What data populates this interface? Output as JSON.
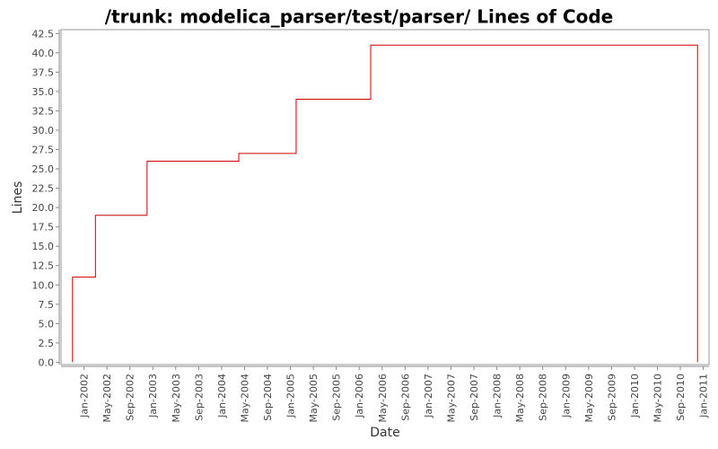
{
  "chart_data": {
    "type": "line",
    "title": "/trunk: modelica_parser/test/parser/ Lines of Code",
    "x_label": "Date",
    "y_label": "Lines",
    "color": "#cc0000",
    "x": [
      "2001-11",
      "2001-11",
      "2002-03",
      "2002-03",
      "2002-12",
      "2002-12",
      "2004-04",
      "2004-04",
      "2005-02",
      "2005-02",
      "2006-03",
      "2006-03",
      "2010-12",
      "2010-12"
    ],
    "values": [
      0,
      11,
      11,
      19,
      19,
      26,
      26,
      27,
      27,
      34,
      34,
      41,
      41,
      0
    ],
    "xlim": [
      "2001-09",
      "2011-02"
    ],
    "xticks": [
      {
        "value": "2002-01",
        "label": "Jan-2002"
      },
      {
        "value": "2002-05",
        "label": "May-2002"
      },
      {
        "value": "2002-09",
        "label": "Sep-2002"
      },
      {
        "value": "2003-01",
        "label": "Jan-2003"
      },
      {
        "value": "2003-05",
        "label": "May-2003"
      },
      {
        "value": "2003-09",
        "label": "Sep-2003"
      },
      {
        "value": "2004-01",
        "label": "Jan-2004"
      },
      {
        "value": "2004-05",
        "label": "May-2004"
      },
      {
        "value": "2004-09",
        "label": "Sep-2004"
      },
      {
        "value": "2005-01",
        "label": "Jan-2005"
      },
      {
        "value": "2005-05",
        "label": "May-2005"
      },
      {
        "value": "2005-09",
        "label": "Sep-2005"
      },
      {
        "value": "2006-01",
        "label": "Jan-2006"
      },
      {
        "value": "2006-05",
        "label": "May-2006"
      },
      {
        "value": "2006-09",
        "label": "Sep-2006"
      },
      {
        "value": "2007-01",
        "label": "Jan-2007"
      },
      {
        "value": "2007-05",
        "label": "May-2007"
      },
      {
        "value": "2007-09",
        "label": "Sep-2007"
      },
      {
        "value": "2008-01",
        "label": "Jan-2008"
      },
      {
        "value": "2008-05",
        "label": "May-2008"
      },
      {
        "value": "2008-09",
        "label": "Sep-2008"
      },
      {
        "value": "2009-01",
        "label": "Jan-2009"
      },
      {
        "value": "2009-05",
        "label": "May-2009"
      },
      {
        "value": "2009-09",
        "label": "Sep-2009"
      },
      {
        "value": "2010-01",
        "label": "Jan-2010"
      },
      {
        "value": "2010-05",
        "label": "May-2010"
      },
      {
        "value": "2010-09",
        "label": "Sep-2010"
      },
      {
        "value": "2011-01",
        "label": "Jan-2011"
      }
    ],
    "ylim": [
      -0.3,
      43
    ],
    "yticks": [
      {
        "value": 0,
        "label": "0.0"
      },
      {
        "value": 2.5,
        "label": "2.5"
      },
      {
        "value": 5,
        "label": "5.0"
      },
      {
        "value": 7.5,
        "label": "7.5"
      },
      {
        "value": 10,
        "label": "10.0"
      },
      {
        "value": 12.5,
        "label": "12.5"
      },
      {
        "value": 15,
        "label": "15.0"
      },
      {
        "value": 17.5,
        "label": "17.5"
      },
      {
        "value": 20,
        "label": "20.0"
      },
      {
        "value": 22.5,
        "label": "22.5"
      },
      {
        "value": 25,
        "label": "25.0"
      },
      {
        "value": 27.5,
        "label": "27.5"
      },
      {
        "value": 30,
        "label": "30.0"
      },
      {
        "value": 32.5,
        "label": "32.5"
      },
      {
        "value": 35,
        "label": "35.0"
      },
      {
        "value": 37.5,
        "label": "37.5"
      },
      {
        "value": 40,
        "label": "40.0"
      },
      {
        "value": 42.5,
        "label": "42.5"
      }
    ],
    "grid": false
  }
}
